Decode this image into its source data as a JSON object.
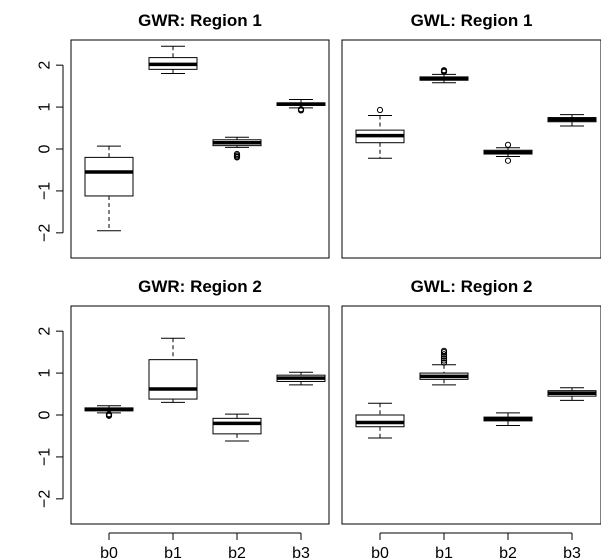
{
  "chart_data": [
    {
      "type": "boxplot",
      "title": "GWR: Region 1",
      "categories": [
        "b0",
        "b1",
        "b2",
        "b3"
      ],
      "ylim": [
        -2.6,
        2.6
      ],
      "yticks": [
        -2,
        -1,
        0,
        1,
        2
      ],
      "boxes": [
        {
          "lower_whisker": -1.95,
          "q1": -1.12,
          "median": -0.55,
          "q3": -0.2,
          "upper_whisker": 0.07,
          "outliers": []
        },
        {
          "lower_whisker": 1.8,
          "q1": 1.9,
          "median": 2.02,
          "q3": 2.18,
          "upper_whisker": 2.45,
          "outliers": []
        },
        {
          "lower_whisker": 0.04,
          "q1": 0.08,
          "median": 0.15,
          "q3": 0.22,
          "upper_whisker": 0.28,
          "outliers": [
            -0.12,
            -0.15,
            -0.18,
            -0.2
          ]
        },
        {
          "lower_whisker": 0.98,
          "q1": 1.04,
          "median": 1.07,
          "q3": 1.1,
          "upper_whisker": 1.18,
          "outliers": [
            0.95,
            0.93,
            0.92
          ]
        }
      ]
    },
    {
      "type": "boxplot",
      "title": "GWL: Region 1",
      "categories": [
        "b0",
        "b1",
        "b2",
        "b3"
      ],
      "ylim": [
        -2.6,
        2.6
      ],
      "yticks": [
        -2,
        -1,
        0,
        1,
        2
      ],
      "boxes": [
        {
          "lower_whisker": -0.22,
          "q1": 0.15,
          "median": 0.32,
          "q3": 0.45,
          "upper_whisker": 0.8,
          "outliers": [
            0.93
          ]
        },
        {
          "lower_whisker": 1.58,
          "q1": 1.64,
          "median": 1.68,
          "q3": 1.72,
          "upper_whisker": 1.78,
          "outliers": [
            1.84,
            1.86,
            1.88
          ]
        },
        {
          "lower_whisker": -0.18,
          "q1": -0.12,
          "median": -0.08,
          "q3": -0.03,
          "upper_whisker": 0.03,
          "outliers": [
            0.1,
            -0.28
          ]
        },
        {
          "lower_whisker": 0.55,
          "q1": 0.65,
          "median": 0.7,
          "q3": 0.75,
          "upper_whisker": 0.82,
          "outliers": []
        }
      ]
    },
    {
      "type": "boxplot",
      "title": "GWR: Region 2",
      "categories": [
        "b0",
        "b1",
        "b2",
        "b3"
      ],
      "ylim": [
        -2.6,
        2.6
      ],
      "yticks": [
        -2,
        -1,
        0,
        1,
        2
      ],
      "boxes": [
        {
          "lower_whisker": 0.05,
          "q1": 0.1,
          "median": 0.13,
          "q3": 0.17,
          "upper_whisker": 0.22,
          "outliers": [
            0.02,
            0.0,
            -0.02
          ]
        },
        {
          "lower_whisker": 0.3,
          "q1": 0.38,
          "median": 0.62,
          "q3": 1.32,
          "upper_whisker": 1.83,
          "outliers": []
        },
        {
          "lower_whisker": -0.62,
          "q1": -0.45,
          "median": -0.2,
          "q3": -0.08,
          "upper_whisker": 0.02,
          "outliers": []
        },
        {
          "lower_whisker": 0.72,
          "q1": 0.8,
          "median": 0.88,
          "q3": 0.95,
          "upper_whisker": 1.02,
          "outliers": []
        }
      ]
    },
    {
      "type": "boxplot",
      "title": "GWL: Region 2",
      "categories": [
        "b0",
        "b1",
        "b2",
        "b3"
      ],
      "ylim": [
        -2.6,
        2.6
      ],
      "yticks": [
        -2,
        -1,
        0,
        1,
        2
      ],
      "boxes": [
        {
          "lower_whisker": -0.55,
          "q1": -0.28,
          "median": -0.18,
          "q3": 0.0,
          "upper_whisker": 0.28,
          "outliers": []
        },
        {
          "lower_whisker": 0.72,
          "q1": 0.85,
          "median": 0.92,
          "q3": 1.0,
          "upper_whisker": 1.2,
          "outliers": [
            1.25,
            1.3,
            1.35,
            1.4,
            1.45,
            1.5,
            1.53
          ]
        },
        {
          "lower_whisker": -0.25,
          "q1": -0.14,
          "median": -0.1,
          "q3": -0.05,
          "upper_whisker": 0.05,
          "outliers": []
        },
        {
          "lower_whisker": 0.35,
          "q1": 0.45,
          "median": 0.52,
          "q3": 0.58,
          "upper_whisker": 0.65,
          "outliers": []
        }
      ]
    }
  ]
}
